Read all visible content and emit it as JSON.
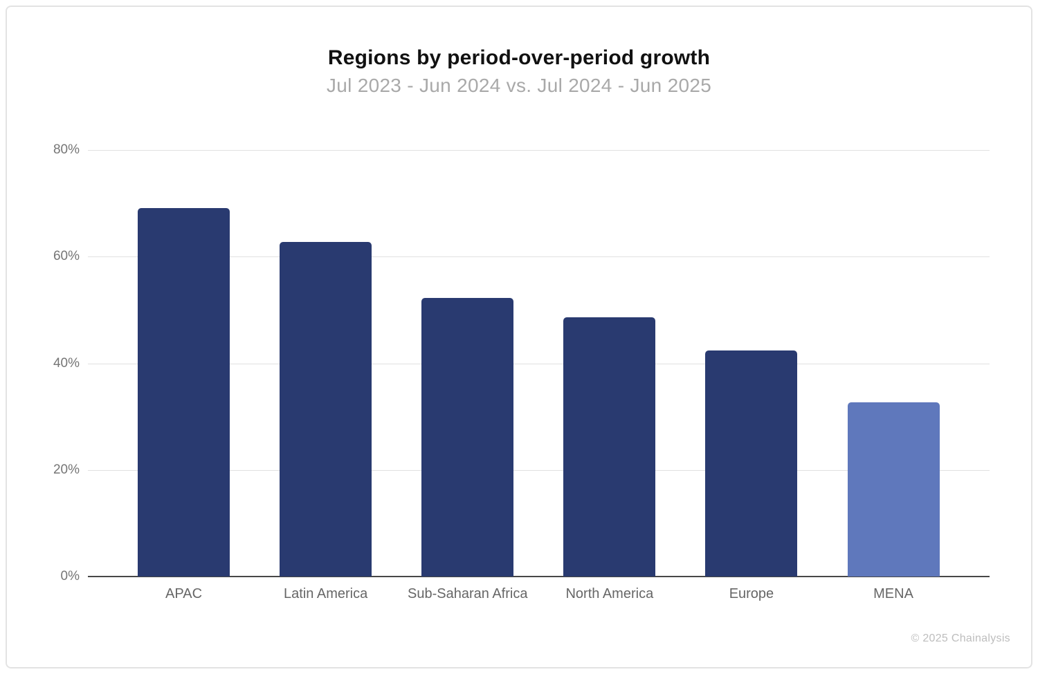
{
  "chart_data": {
    "type": "bar",
    "title": "Regions by period-over-period growth",
    "subtitle": "Jul 2023 - Jun 2024 vs. Jul 2024 - Jun 2025",
    "categories": [
      "APAC",
      "Latin America",
      "Sub-Saharan Africa",
      "North America",
      "Europe",
      "MENA"
    ],
    "values": [
      69.1,
      62.8,
      52.2,
      48.6,
      42.4,
      32.7
    ],
    "unit": "%",
    "ylim": [
      0,
      80
    ],
    "yticks": [
      0,
      20,
      40,
      60,
      80
    ],
    "ytick_labels": [
      "0%",
      "20%",
      "40%",
      "60%",
      "80%"
    ],
    "grid": "horizontal",
    "legend": "none",
    "bar_colors": [
      "#293a70",
      "#293a70",
      "#293a70",
      "#293a70",
      "#293a70",
      "#5f78bc"
    ]
  },
  "colors": {
    "bar_primary": "#293a70",
    "bar_highlight": "#5f78bc",
    "gridline": "#e0e0e0",
    "axis_line": "#474747",
    "tick_label": "#757575",
    "category_label": "#666666",
    "title": "#111111",
    "subtitle": "#a9a9a9",
    "copyright": "#bdbdbd",
    "card_border": "#e3e3e3"
  },
  "footer": {
    "copyright": "© 2025 Chainalysis"
  }
}
